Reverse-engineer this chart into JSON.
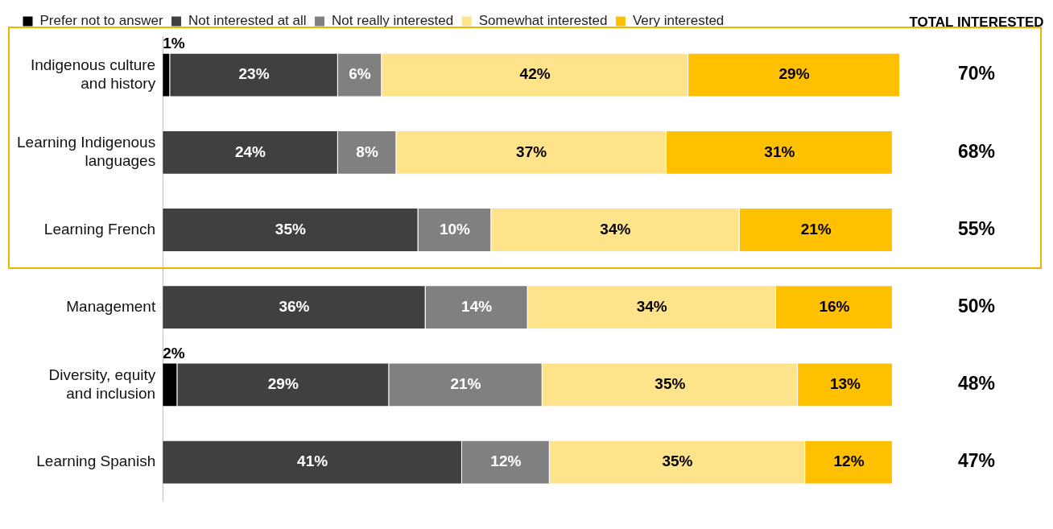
{
  "chart_data": {
    "type": "bar",
    "orientation": "horizontal",
    "stacked": true,
    "legend": "top",
    "grid": false,
    "tick_labels": "y",
    "categories": [
      "Indigenous culture and history",
      "Learning Indigenous languages",
      "Learning French",
      "Management",
      "Diversity, equity and inclusion",
      "Learning Spanish"
    ],
    "series": [
      {
        "name": "Prefer not to answer",
        "color": "#000000",
        "values": [
          1,
          null,
          null,
          null,
          2,
          null
        ],
        "value_labels": [
          "1%",
          null,
          null,
          null,
          "2%",
          null
        ]
      },
      {
        "name": "Not interested at all",
        "color": "#404040",
        "values": [
          23,
          24,
          35,
          36,
          29,
          41
        ],
        "value_labels": [
          "23%",
          "24%",
          "35%",
          "36%",
          "29%",
          "41%"
        ]
      },
      {
        "name": "Not really interested",
        "color": "#808080",
        "values": [
          6,
          8,
          10,
          14,
          21,
          12
        ],
        "value_labels": [
          "6%",
          "8%",
          "10%",
          "14%",
          "21%",
          "12%"
        ]
      },
      {
        "name": "Somewhat interested",
        "color": "#ffe38b",
        "values": [
          42,
          37,
          34,
          34,
          35,
          35
        ],
        "value_labels": [
          "42%",
          "37%",
          "34%",
          "34%",
          "35%",
          "35%"
        ]
      },
      {
        "name": "Very interested",
        "color": "#ffc000",
        "values": [
          29,
          31,
          21,
          16,
          13,
          12
        ],
        "value_labels": [
          "29%",
          "31%",
          "21%",
          "16%",
          "13%",
          "12%"
        ]
      }
    ],
    "annotations": [
      "TOTAL INTERESTED",
      "70%",
      "68%",
      "55%",
      "50%",
      "48%",
      "47%"
    ]
  }
}
